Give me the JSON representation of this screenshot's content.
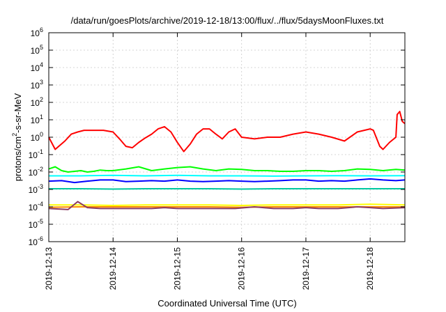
{
  "chart_data": {
    "type": "line",
    "title": "/data/run/goesPlots/archive/2019-12-18/13:00/flux/../flux/5daysMoonFluxes.txt",
    "xlabel": "Coordinated Universal Time (UTC)",
    "ylabel": {
      "base": "protons/cm",
      "sup": "2",
      "rest": "-s-sr-MeV"
    },
    "y_scale": "log",
    "ylim": [
      1e-06,
      1000000.0
    ],
    "xlim": [
      "2019-12-13",
      "2019-12-18 13:00"
    ],
    "grid": true,
    "legend": "none",
    "x_ticks": [
      "2019-12-13",
      "2019-12-14",
      "2019-12-15",
      "2019-12-16",
      "2019-12-17",
      "2019-12-18"
    ],
    "y_ticks": [
      {
        "value": 1e-06,
        "base": "10",
        "exp": "-6"
      },
      {
        "value": 1e-05,
        "base": "10",
        "exp": "-5"
      },
      {
        "value": 0.0001,
        "base": "10",
        "exp": "-4"
      },
      {
        "value": 0.001,
        "base": "10",
        "exp": "-3"
      },
      {
        "value": 0.01,
        "base": "10",
        "exp": "-2"
      },
      {
        "value": 0.1,
        "base": "10",
        "exp": "-1"
      },
      {
        "value": 1.0,
        "base": "10",
        "exp": "0"
      },
      {
        "value": 10.0,
        "base": "10",
        "exp": "1"
      },
      {
        "value": 100.0,
        "base": "10",
        "exp": "2"
      },
      {
        "value": 1000.0,
        "base": "10",
        "exp": "3"
      },
      {
        "value": 10000.0,
        "base": "10",
        "exp": "4"
      },
      {
        "value": 100000.0,
        "base": "10",
        "exp": "5"
      },
      {
        "value": 1000000.0,
        "base": "10",
        "exp": "6"
      }
    ],
    "series": [
      {
        "color": "#ff0000",
        "x_days": [
          0,
          0.1,
          0.25,
          0.35,
          0.45,
          0.55,
          0.7,
          0.85,
          1.0,
          1.1,
          1.2,
          1.3,
          1.4,
          1.5,
          1.6,
          1.7,
          1.8,
          1.9,
          2.0,
          2.1,
          2.2,
          2.3,
          2.4,
          2.5,
          2.6,
          2.7,
          2.8,
          2.9,
          3.0,
          3.2,
          3.4,
          3.6,
          3.8,
          4.0,
          4.2,
          4.4,
          4.6,
          4.8,
          5.0,
          5.05,
          5.15,
          5.2,
          5.3,
          5.4,
          5.42,
          5.46,
          5.5,
          5.54
        ],
        "values": [
          1.0,
          0.2,
          0.6,
          1.5,
          2.0,
          2.5,
          2.5,
          2.5,
          2.0,
          0.8,
          0.3,
          0.25,
          0.5,
          0.9,
          1.5,
          3.0,
          4.0,
          2.0,
          0.5,
          0.15,
          0.4,
          1.5,
          3.0,
          3.0,
          1.5,
          0.8,
          2.0,
          3.0,
          1.0,
          0.8,
          1.0,
          1.0,
          1.5,
          2.0,
          1.5,
          1.0,
          0.6,
          2.0,
          3.0,
          2.5,
          0.3,
          0.2,
          0.5,
          1.0,
          20.0,
          30.0,
          8.0,
          6.0
        ]
      },
      {
        "color": "#00ff00",
        "x_days": [
          0,
          0.1,
          0.2,
          0.3,
          0.4,
          0.5,
          0.6,
          0.7,
          0.8,
          0.9,
          1.0,
          1.2,
          1.4,
          1.6,
          1.8,
          2.0,
          2.2,
          2.4,
          2.6,
          2.8,
          3.0,
          3.2,
          3.4,
          3.6,
          3.8,
          4.0,
          4.2,
          4.4,
          4.6,
          4.8,
          5.0,
          5.2,
          5.4,
          5.54
        ],
        "values": [
          0.015,
          0.02,
          0.012,
          0.01,
          0.011,
          0.012,
          0.01,
          0.011,
          0.013,
          0.012,
          0.012,
          0.015,
          0.02,
          0.012,
          0.015,
          0.018,
          0.02,
          0.015,
          0.012,
          0.015,
          0.014,
          0.012,
          0.012,
          0.011,
          0.011,
          0.012,
          0.012,
          0.011,
          0.012,
          0.015,
          0.014,
          0.012,
          0.014,
          0.013
        ]
      },
      {
        "color": "#00ffff",
        "x_days": [
          0,
          0.5,
          1.0,
          1.5,
          2.0,
          2.5,
          3.0,
          3.5,
          4.0,
          4.5,
          5.0,
          5.54
        ],
        "values": [
          0.006,
          0.006,
          0.0065,
          0.006,
          0.0065,
          0.006,
          0.006,
          0.0058,
          0.006,
          0.0062,
          0.006,
          0.0062
        ]
      },
      {
        "color": "#0000ff",
        "x_days": [
          0,
          0.2,
          0.4,
          0.6,
          0.8,
          1.0,
          1.2,
          1.4,
          1.6,
          1.8,
          2.0,
          2.2,
          2.4,
          2.6,
          2.8,
          3.0,
          3.2,
          3.4,
          3.6,
          3.8,
          4.0,
          4.2,
          4.4,
          4.6,
          4.8,
          5.0,
          5.2,
          5.4,
          5.54
        ],
        "values": [
          0.003,
          0.0032,
          0.0025,
          0.003,
          0.0035,
          0.0035,
          0.0028,
          0.003,
          0.0032,
          0.003,
          0.0035,
          0.003,
          0.0028,
          0.003,
          0.0032,
          0.003,
          0.0028,
          0.003,
          0.0032,
          0.0035,
          0.0035,
          0.003,
          0.0032,
          0.003,
          0.0035,
          0.004,
          0.0035,
          0.0032,
          0.0035
        ]
      },
      {
        "color": "#00c8a0",
        "x_days": [
          0,
          0.5,
          1.0,
          1.5,
          2.0,
          2.5,
          3.0,
          3.5,
          4.0,
          4.5,
          5.0,
          5.54
        ],
        "values": [
          0.0011,
          0.0011,
          0.00105,
          0.0011,
          0.0011,
          0.0011,
          0.00105,
          0.0011,
          0.0011,
          0.0011,
          0.0011,
          0.0011
        ]
      },
      {
        "color": "#ffff00",
        "x_days": [
          0,
          0.5,
          1.0,
          1.5,
          2.0,
          2.5,
          3.0,
          3.5,
          4.0,
          4.5,
          5.0,
          5.54
        ],
        "values": [
          0.00013,
          0.00013,
          0.00012,
          0.00013,
          0.00013,
          0.00013,
          0.00012,
          0.00013,
          0.00013,
          0.00013,
          0.00014,
          0.00013
        ]
      },
      {
        "color": "#ff8c00",
        "x_days": [
          0,
          0.5,
          1.0,
          1.5,
          2.0,
          2.5,
          3.0,
          3.5,
          4.0,
          4.5,
          5.0,
          5.54
        ],
        "values": [
          9.5e-05,
          0.0001,
          0.0001,
          0.0001,
          0.0001,
          0.0001,
          9.5e-05,
          0.0001,
          0.0001,
          0.0001,
          0.0001,
          0.0001
        ]
      },
      {
        "color": "#8b3a62",
        "x_days": [
          0,
          0.3,
          0.45,
          0.6,
          0.8,
          1.0,
          1.3,
          1.6,
          1.8,
          2.0,
          2.3,
          2.6,
          2.9,
          3.2,
          3.5,
          3.8,
          4.0,
          4.2,
          4.5,
          4.8,
          5.0,
          5.2,
          5.54
        ],
        "values": [
          8e-05,
          7e-05,
          0.0002,
          9e-05,
          8e-05,
          8e-05,
          8e-05,
          8e-05,
          9e-05,
          8e-05,
          8e-05,
          8e-05,
          8e-05,
          0.0001,
          8e-05,
          8e-05,
          9e-05,
          8e-05,
          8e-05,
          0.0001,
          9e-05,
          8e-05,
          9e-05
        ]
      }
    ]
  }
}
